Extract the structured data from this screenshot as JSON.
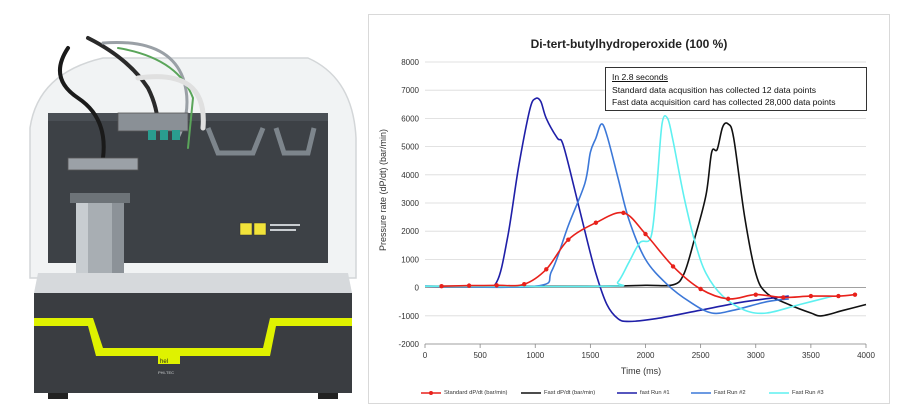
{
  "photo": {
    "panel_text_1": "hel",
    "panel_text_2": "PHI-TEC"
  },
  "chart_data": {
    "type": "line",
    "title": "Di-tert-butylhydroperoxide (100 %)",
    "xlabel": "Time (ms)",
    "ylabel": "Pressure rate (dP/dt)  (bar/min)",
    "xlim": [
      0,
      4000
    ],
    "ylim": [
      -2000,
      8000
    ],
    "x_ticks": [
      "0",
      "500",
      "1000",
      "1500",
      "2000",
      "2500",
      "3000",
      "3500",
      "4000"
    ],
    "y_ticks": [
      "-2000",
      "-1000",
      "0",
      "1000",
      "2000",
      "3000",
      "4000",
      "5000",
      "6000",
      "7000",
      "8000"
    ],
    "grid": "horizontal",
    "legend_position": "bottom",
    "annotation": [
      "In 2.8 seconds",
      "Standard data acqusition has collected 12 data points",
      "Fast data acquisition card has collected 28,000 data points"
    ],
    "series": [
      {
        "name": "Standard dP/dt (bar/min)",
        "color": "#e8211b",
        "markers": true,
        "points": [
          [
            150,
            50
          ],
          [
            400,
            70
          ],
          [
            650,
            80
          ],
          [
            900,
            120
          ],
          [
            1100,
            650
          ],
          [
            1300,
            1700
          ],
          [
            1550,
            2300
          ],
          [
            1800,
            2650
          ],
          [
            2000,
            1900
          ],
          [
            2250,
            750
          ],
          [
            2500,
            -50
          ],
          [
            2750,
            -400
          ],
          [
            3000,
            -250
          ],
          [
            3250,
            -350
          ],
          [
            3500,
            -300
          ],
          [
            3750,
            -300
          ],
          [
            3900,
            -250
          ]
        ]
      },
      {
        "name": "Fast dP/dt (bar/min)",
        "color": "#111111",
        "markers": false,
        "points": [
          [
            0,
            50
          ],
          [
            1500,
            50
          ],
          [
            2000,
            80
          ],
          [
            2250,
            100
          ],
          [
            2350,
            500
          ],
          [
            2450,
            1800
          ],
          [
            2550,
            3300
          ],
          [
            2600,
            4800
          ],
          [
            2650,
            4900
          ],
          [
            2700,
            5700
          ],
          [
            2750,
            5800
          ],
          [
            2800,
            5300
          ],
          [
            2900,
            2500
          ],
          [
            3000,
            500
          ],
          [
            3100,
            -200
          ],
          [
            3300,
            -600
          ],
          [
            3500,
            -900
          ],
          [
            3600,
            -1000
          ],
          [
            3800,
            -800
          ],
          [
            4000,
            -600
          ]
        ]
      },
      {
        "name": "fast Run #1",
        "color": "#1f1fa8",
        "markers": false,
        "points": [
          [
            0,
            50
          ],
          [
            500,
            50
          ],
          [
            650,
            200
          ],
          [
            750,
            1800
          ],
          [
            850,
            4300
          ],
          [
            950,
            6300
          ],
          [
            1000,
            6700
          ],
          [
            1050,
            6600
          ],
          [
            1100,
            6000
          ],
          [
            1200,
            5300
          ],
          [
            1250,
            5100
          ],
          [
            1350,
            3600
          ],
          [
            1450,
            2000
          ],
          [
            1550,
            500
          ],
          [
            1650,
            -600
          ],
          [
            1750,
            -1100
          ],
          [
            1850,
            -1200
          ],
          [
            2100,
            -1100
          ],
          [
            2500,
            -800
          ],
          [
            2900,
            -500
          ],
          [
            3300,
            -300
          ]
        ]
      },
      {
        "name": "Fast Run #2",
        "color": "#3c78d8",
        "markers": false,
        "points": [
          [
            0,
            50
          ],
          [
            1000,
            50
          ],
          [
            1150,
            600
          ],
          [
            1300,
            2200
          ],
          [
            1450,
            3700
          ],
          [
            1500,
            4800
          ],
          [
            1550,
            5300
          ],
          [
            1600,
            5800
          ],
          [
            1650,
            5400
          ],
          [
            1750,
            3900
          ],
          [
            1850,
            2400
          ],
          [
            2000,
            1000
          ],
          [
            2200,
            100
          ],
          [
            2400,
            -500
          ],
          [
            2600,
            -900
          ],
          [
            2800,
            -800
          ],
          [
            3100,
            -500
          ],
          [
            3300,
            -400
          ]
        ]
      },
      {
        "name": "Fast Run #3",
        "color": "#5ef0f0",
        "markers": false,
        "points": [
          [
            0,
            50
          ],
          [
            1650,
            50
          ],
          [
            1750,
            200
          ],
          [
            1850,
            900
          ],
          [
            1950,
            1600
          ],
          [
            2050,
            1800
          ],
          [
            2100,
            3500
          ],
          [
            2150,
            5800
          ],
          [
            2200,
            6000
          ],
          [
            2250,
            5200
          ],
          [
            2350,
            3200
          ],
          [
            2450,
            1600
          ],
          [
            2550,
            500
          ],
          [
            2700,
            -300
          ],
          [
            2900,
            -800
          ],
          [
            3100,
            -900
          ],
          [
            3400,
            -600
          ],
          [
            3700,
            -300
          ]
        ]
      }
    ]
  }
}
